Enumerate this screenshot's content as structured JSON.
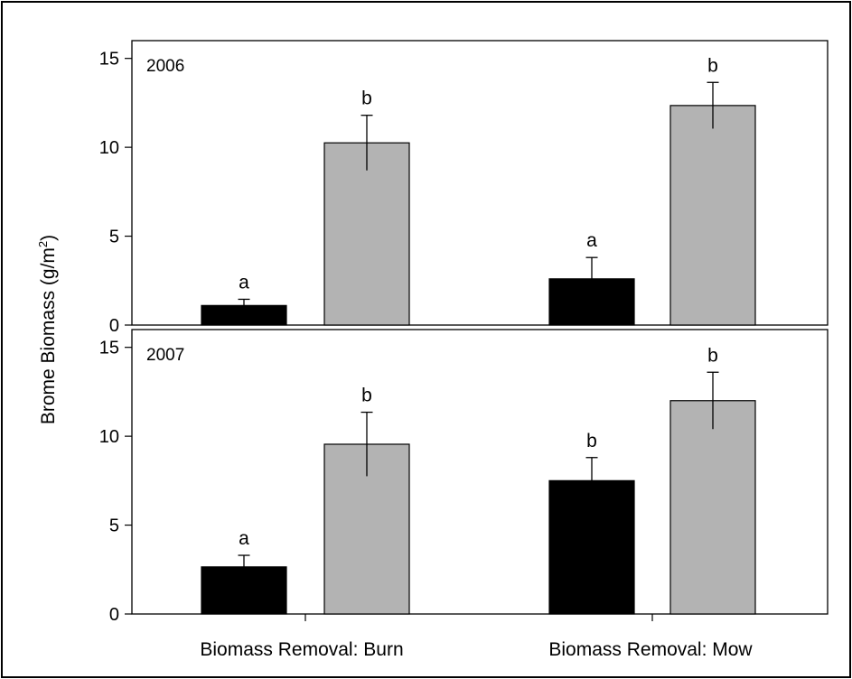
{
  "figure": {
    "ylabel": "Brome Biomass (g/m",
    "ylabel_sup": "2",
    "ylabel_close": ")",
    "group_labels": [
      "Biomass Removal: Burn",
      "Biomass Removal: Mow"
    ]
  },
  "colors": {
    "series_1": "#000000",
    "series_2": "#b3b3b3",
    "frame": "#000000"
  },
  "chart_data": [
    {
      "type": "bar",
      "panel_label": "2006",
      "categories": [
        "Biomass Removal: Burn",
        "Biomass Removal: Mow"
      ],
      "ylim": [
        0,
        16
      ],
      "yticks": [
        0,
        5,
        10,
        15
      ],
      "series": [
        {
          "values": [
            1.1,
            2.6
          ],
          "errors": [
            0.35,
            1.2
          ],
          "letters": [
            "a",
            "a"
          ],
          "color": "#000000"
        },
        {
          "values": [
            10.25,
            12.35
          ],
          "errors": [
            1.55,
            1.3
          ],
          "letters": [
            "b",
            "b"
          ],
          "color": "#b3b3b3"
        }
      ]
    },
    {
      "type": "bar",
      "panel_label": "2007",
      "categories": [
        "Biomass Removal: Burn",
        "Biomass Removal: Mow"
      ],
      "ylim": [
        0,
        16
      ],
      "yticks": [
        0,
        5,
        10,
        15
      ],
      "series": [
        {
          "values": [
            2.65,
            7.5
          ],
          "errors": [
            0.65,
            1.3
          ],
          "letters": [
            "a",
            "b"
          ],
          "color": "#000000"
        },
        {
          "values": [
            9.55,
            12.0
          ],
          "errors": [
            1.8,
            1.6
          ],
          "letters": [
            "b",
            "b"
          ],
          "color": "#b3b3b3"
        }
      ]
    }
  ]
}
